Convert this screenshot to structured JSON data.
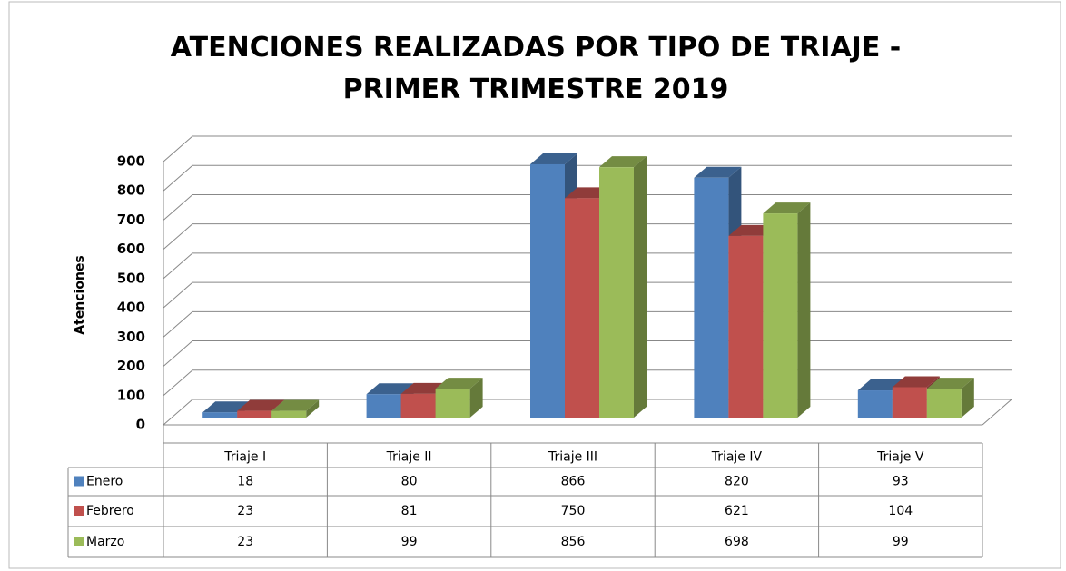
{
  "chart_data": {
    "type": "bar3d",
    "title": "ATENCIONES REALIZADAS POR TIPO DE TRIAJE - PRIMER TRIMESTRE 2019",
    "ylabel": "Atenciones",
    "categories": [
      "Triaje I",
      "Triaje II",
      "Triaje III",
      "Triaje IV",
      "Triaje V"
    ],
    "series": [
      {
        "name": "Enero",
        "color": "#4f81bd",
        "values": [
          18,
          80,
          866,
          820,
          93
        ]
      },
      {
        "name": "Febrero",
        "color": "#c0504d",
        "values": [
          23,
          81,
          750,
          621,
          104
        ]
      },
      {
        "name": "Marzo",
        "color": "#9bbb59",
        "values": [
          23,
          99,
          856,
          698,
          99
        ]
      }
    ],
    "ylim": [
      0,
      900
    ],
    "yticks": [
      0,
      100,
      200,
      300,
      400,
      500,
      600,
      700,
      800,
      900
    ],
    "grid": true,
    "data_table": true
  }
}
